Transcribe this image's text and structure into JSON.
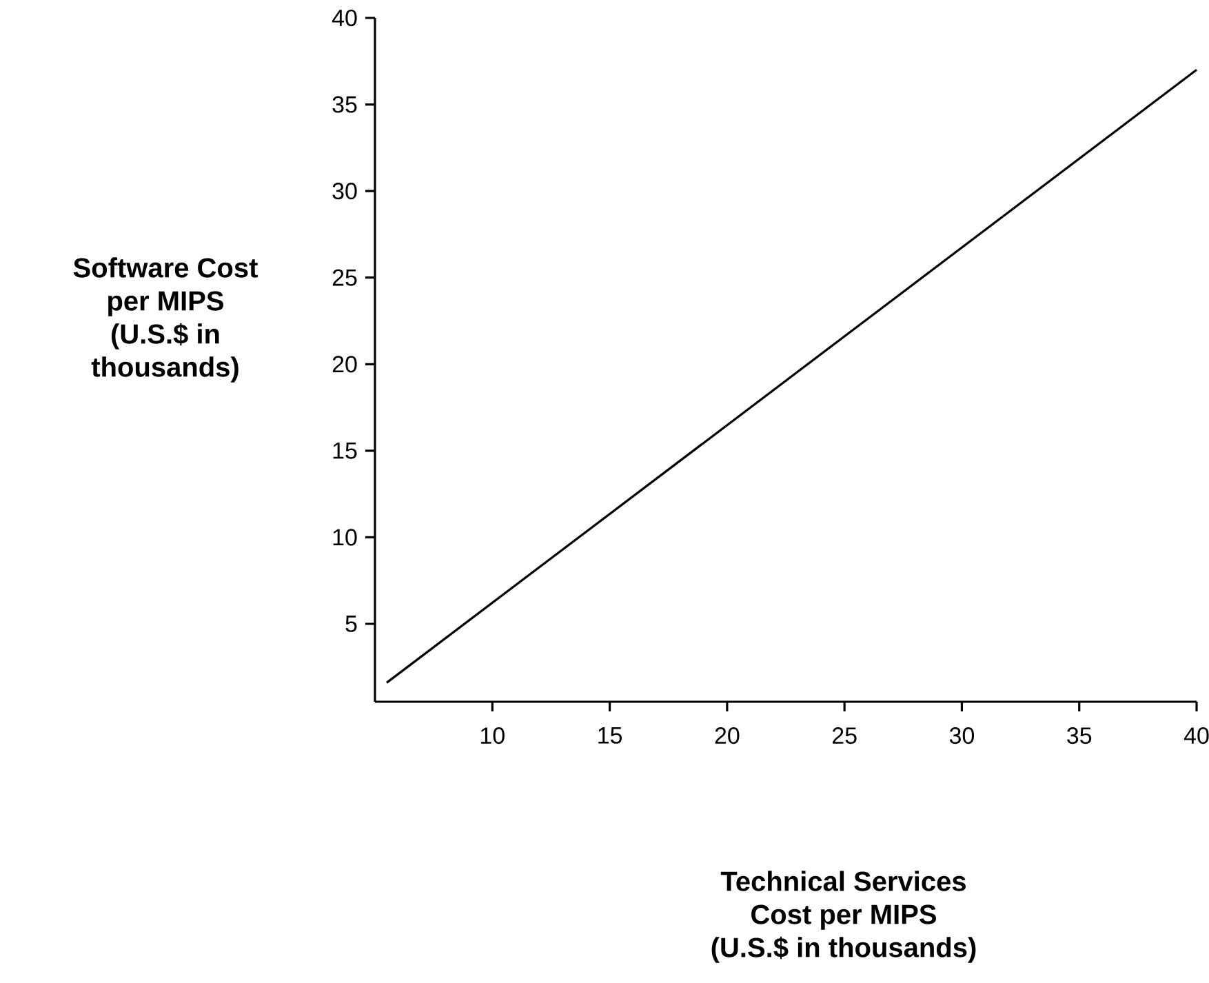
{
  "chart_data": {
    "type": "line",
    "xlabel": "Technical Services\nCost per MIPS\n(U.S.$ in thousands)",
    "ylabel": "Software Cost\nper MIPS\n(U.S.$ in\nthousands)",
    "x": [
      5.5,
      40
    ],
    "series": [
      {
        "color": "#000000",
        "values": [
          1.6,
          37
        ]
      }
    ],
    "xlim": [
      5,
      40
    ],
    "ylim": [
      0.5,
      40
    ],
    "xticks": [
      10,
      15,
      20,
      25,
      30,
      35,
      40
    ],
    "yticks": [
      5,
      10,
      15,
      20,
      25,
      30,
      35,
      40
    ],
    "grid": false,
    "marker": "none",
    "line_style": "solid"
  }
}
